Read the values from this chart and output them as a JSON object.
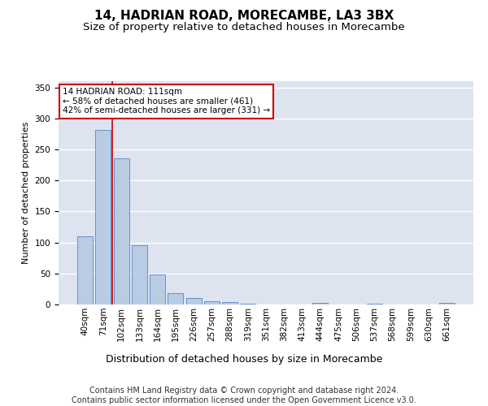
{
  "title1": "14, HADRIAN ROAD, MORECAMBE, LA3 3BX",
  "title2": "Size of property relative to detached houses in Morecambe",
  "xlabel": "Distribution of detached houses by size in Morecambe",
  "ylabel": "Number of detached properties",
  "categories": [
    "40sqm",
    "71sqm",
    "102sqm",
    "133sqm",
    "164sqm",
    "195sqm",
    "226sqm",
    "257sqm",
    "288sqm",
    "319sqm",
    "351sqm",
    "382sqm",
    "413sqm",
    "444sqm",
    "475sqm",
    "506sqm",
    "537sqm",
    "568sqm",
    "599sqm",
    "630sqm",
    "661sqm"
  ],
  "values": [
    110,
    281,
    235,
    95,
    48,
    18,
    11,
    5,
    4,
    1,
    0,
    0,
    0,
    2,
    0,
    0,
    1,
    0,
    0,
    0,
    2
  ],
  "bar_color": "#b8cce4",
  "bar_edge_color": "#4472c4",
  "background_color": "#dde4f0",
  "grid_color": "#ffffff",
  "annotation_box_text": "14 HADRIAN ROAD: 111sqm\n← 58% of detached houses are smaller (461)\n42% of semi-detached houses are larger (331) →",
  "annotation_box_color": "#ffffff",
  "annotation_box_edge_color": "#cc0000",
  "property_line_color": "#cc0000",
  "ylim": [
    0,
    360
  ],
  "yticks": [
    0,
    50,
    100,
    150,
    200,
    250,
    300,
    350
  ],
  "title1_fontsize": 11,
  "title2_fontsize": 9.5,
  "xlabel_fontsize": 9,
  "ylabel_fontsize": 8,
  "tick_fontsize": 7.5,
  "footer_text": "Contains HM Land Registry data © Crown copyright and database right 2024.\nContains public sector information licensed under the Open Government Licence v3.0.",
  "footer_fontsize": 7
}
